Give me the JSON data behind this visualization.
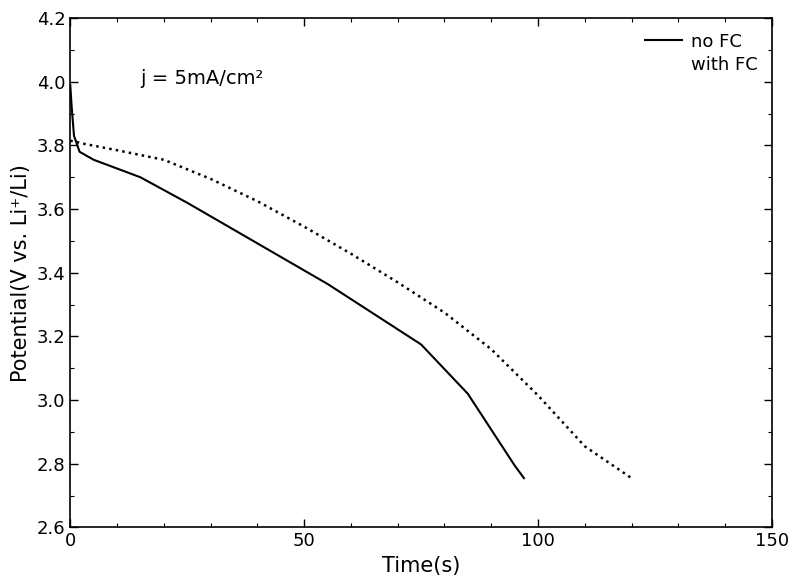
{
  "title": "",
  "xlabel": "Time(s)",
  "ylabel": "Potential(V vs. Li⁺/Li)",
  "annotation": "j = 5mA/cm²",
  "xlim": [
    0,
    150
  ],
  "ylim": [
    2.6,
    4.2
  ],
  "xticks": [
    0,
    50,
    100,
    150
  ],
  "yticks": [
    2.6,
    2.8,
    3.0,
    3.2,
    3.4,
    3.6,
    3.8,
    4.0,
    4.2
  ],
  "no_fc": {
    "label": "no FC",
    "color": "#000000",
    "linestyle": "solid",
    "linewidth": 1.5,
    "x": [
      0.0,
      0.3,
      0.8,
      2.0,
      5.0,
      15.0,
      25.0,
      35.0,
      45.0,
      55.0,
      65.0,
      75.0,
      85.0,
      95.0,
      97.0
    ],
    "y": [
      3.99,
      3.92,
      3.83,
      3.78,
      3.755,
      3.7,
      3.62,
      3.535,
      3.45,
      3.365,
      3.27,
      3.175,
      3.02,
      2.795,
      2.755
    ]
  },
  "with_fc": {
    "label": "with FC",
    "color": "#000000",
    "linestyle": "dotted",
    "linewidth": 1.8,
    "x": [
      0.0,
      1.0,
      3.0,
      10.0,
      20.0,
      30.0,
      40.0,
      50.0,
      60.0,
      70.0,
      80.0,
      90.0,
      100.0,
      110.0,
      120.0
    ],
    "y": [
      3.815,
      3.812,
      3.805,
      3.785,
      3.755,
      3.695,
      3.625,
      3.545,
      3.46,
      3.37,
      3.275,
      3.16,
      3.015,
      2.855,
      2.755
    ]
  },
  "legend_fontsize": 13,
  "axis_fontsize": 15,
  "tick_fontsize": 13,
  "annotation_fontsize": 14,
  "background_color": "#ffffff",
  "figure_width": 8.0,
  "figure_height": 5.87,
  "dpi": 100
}
